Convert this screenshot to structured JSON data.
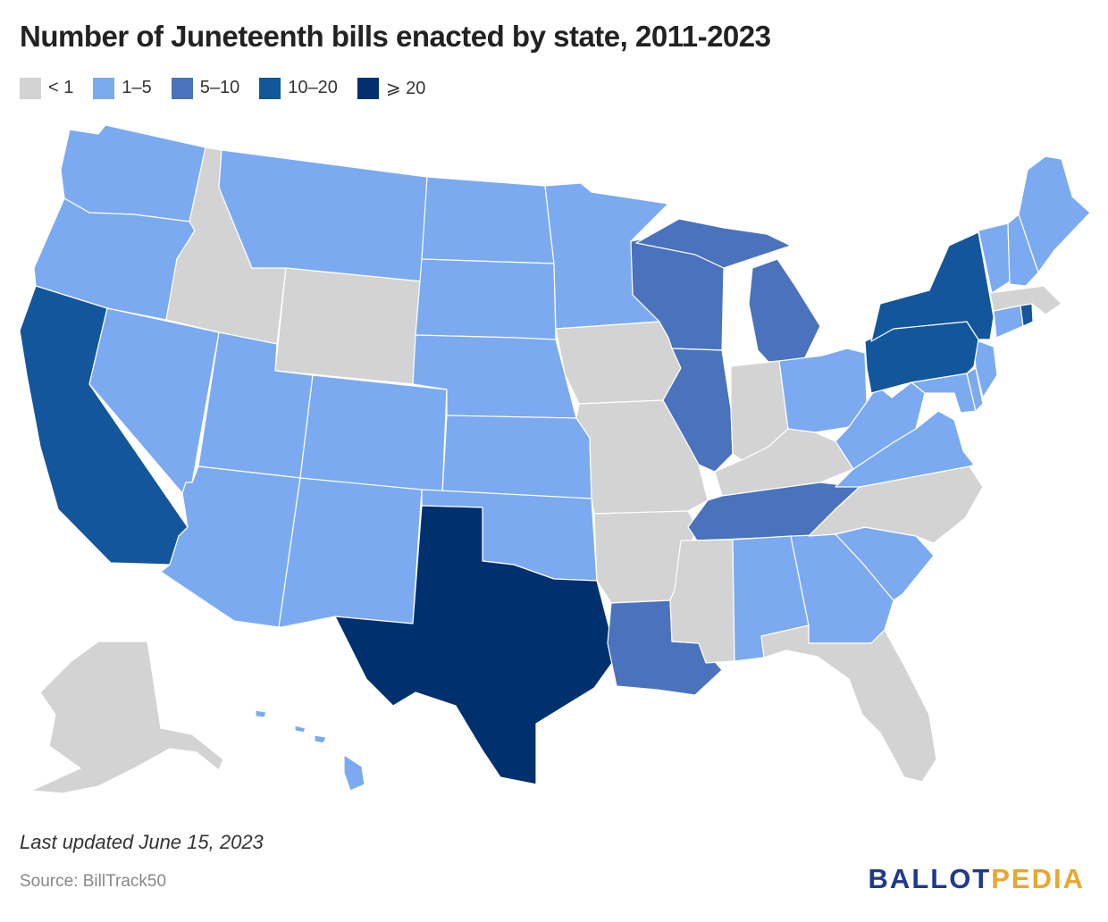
{
  "title": "Number of Juneteenth bills enacted by state, 2011-2023",
  "legend": [
    {
      "label": "< 1",
      "color": "#d3d3d3"
    },
    {
      "label": "1–5",
      "color": "#7baaf0"
    },
    {
      "label": "5–10",
      "color": "#4a72bd"
    },
    {
      "label": "10–20",
      "color": "#14569b"
    },
    {
      "label": "⩾ 20",
      "color": "#00306e"
    }
  ],
  "states": [
    {
      "name": "Washington",
      "bin": "1–5"
    },
    {
      "name": "Oregon",
      "bin": "1–5"
    },
    {
      "name": "California",
      "bin": "10–20"
    },
    {
      "name": "Nevada",
      "bin": "1–5"
    },
    {
      "name": "Idaho",
      "bin": "< 1"
    },
    {
      "name": "Montana",
      "bin": "1–5"
    },
    {
      "name": "Wyoming",
      "bin": "< 1"
    },
    {
      "name": "Utah",
      "bin": "1–5"
    },
    {
      "name": "Arizona",
      "bin": "1–5"
    },
    {
      "name": "Colorado",
      "bin": "1–5"
    },
    {
      "name": "New Mexico",
      "bin": "1–5"
    },
    {
      "name": "North Dakota",
      "bin": "1–5"
    },
    {
      "name": "South Dakota",
      "bin": "1–5"
    },
    {
      "name": "Nebraska",
      "bin": "1–5"
    },
    {
      "name": "Kansas",
      "bin": "1–5"
    },
    {
      "name": "Oklahoma",
      "bin": "1–5"
    },
    {
      "name": "Texas",
      "bin": "⩾ 20"
    },
    {
      "name": "Minnesota",
      "bin": "1–5"
    },
    {
      "name": "Iowa",
      "bin": "< 1"
    },
    {
      "name": "Missouri",
      "bin": "< 1"
    },
    {
      "name": "Arkansas",
      "bin": "< 1"
    },
    {
      "name": "Louisiana",
      "bin": "5–10"
    },
    {
      "name": "Wisconsin",
      "bin": "5–10"
    },
    {
      "name": "Illinois",
      "bin": "5–10"
    },
    {
      "name": "Michigan",
      "bin": "5–10"
    },
    {
      "name": "Indiana",
      "bin": "< 1"
    },
    {
      "name": "Ohio",
      "bin": "1–5"
    },
    {
      "name": "Kentucky",
      "bin": "< 1"
    },
    {
      "name": "Tennessee",
      "bin": "5–10"
    },
    {
      "name": "Mississippi",
      "bin": "< 1"
    },
    {
      "name": "Alabama",
      "bin": "1–5"
    },
    {
      "name": "Georgia",
      "bin": "1–5"
    },
    {
      "name": "Florida",
      "bin": "< 1"
    },
    {
      "name": "South Carolina",
      "bin": "1–5"
    },
    {
      "name": "North Carolina",
      "bin": "< 1"
    },
    {
      "name": "Virginia",
      "bin": "1–5"
    },
    {
      "name": "West Virginia",
      "bin": "1–5"
    },
    {
      "name": "Maryland",
      "bin": "1–5"
    },
    {
      "name": "Delaware",
      "bin": "1–5"
    },
    {
      "name": "New Jersey",
      "bin": "1–5"
    },
    {
      "name": "Pennsylvania",
      "bin": "10–20"
    },
    {
      "name": "New York",
      "bin": "10–20"
    },
    {
      "name": "Connecticut",
      "bin": "1–5"
    },
    {
      "name": "Rhode Island",
      "bin": "10–20"
    },
    {
      "name": "Massachusetts",
      "bin": "< 1"
    },
    {
      "name": "Vermont",
      "bin": "1–5"
    },
    {
      "name": "New Hampshire",
      "bin": "1–5"
    },
    {
      "name": "Maine",
      "bin": "1–5"
    },
    {
      "name": "Alaska",
      "bin": "< 1"
    },
    {
      "name": "Hawaii",
      "bin": "1–5"
    }
  ],
  "footer": {
    "updated": "Last updated June 15, 2023",
    "source": "Source: BillTrack50",
    "brand_part1": "BALLOT",
    "brand_part2": "PEDIA"
  }
}
